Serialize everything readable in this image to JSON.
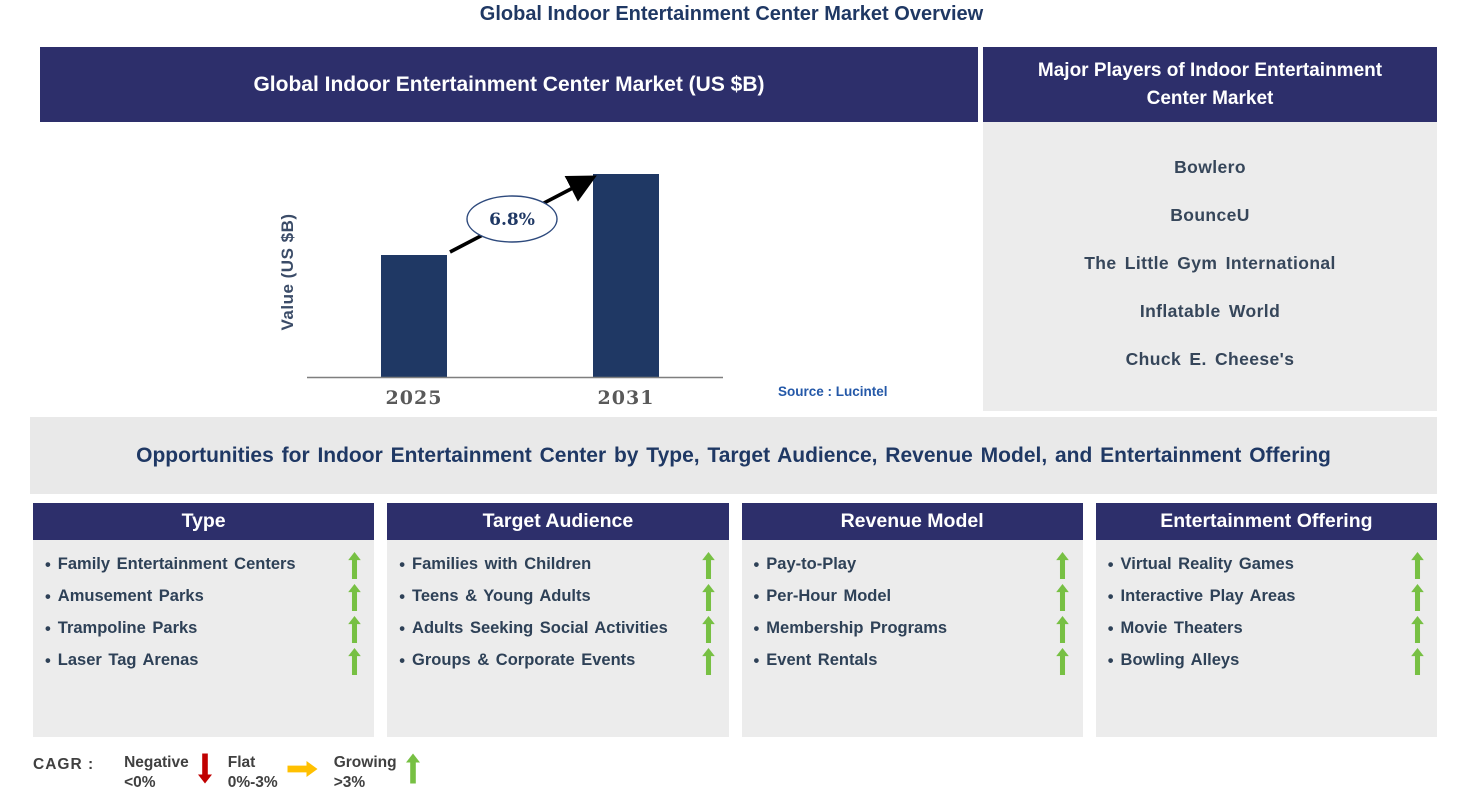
{
  "page": {
    "title": "Global Indoor Entertainment Center Market Overview"
  },
  "market_chart": {
    "header": "Global Indoor Entertainment Center Market (US $B)"
  },
  "chart_data": {
    "type": "bar",
    "title": "Global Indoor Entertainment Center Market (US $B)",
    "ylabel": "Value (US $B)",
    "xlabel": "",
    "categories": [
      "2025",
      "2031"
    ],
    "values": [
      0.6,
      1.0
    ],
    "values_note": "bars are unlabeled; values are relative heights read from pixels",
    "cagr_label": "6.8%",
    "source": "Source : Lucintel",
    "bar_color": "#1f3864",
    "grid": false,
    "legend_position": "none"
  },
  "major_players": {
    "header": "Major Players of Indoor Entertainment Center Market",
    "items": [
      "Bowlero",
      "BounceU",
      "The Little Gym International",
      "Inflatable World",
      "Chuck E. Cheese's"
    ]
  },
  "opportunities": {
    "heading": "Opportunities for Indoor Entertainment Center by Type, Target Audience, Revenue Model, and Entertainment Offering"
  },
  "columns": [
    {
      "header": "Type",
      "items": [
        {
          "label": "Family Entertainment Centers",
          "trend": "growing"
        },
        {
          "label": "Amusement Parks",
          "trend": "growing"
        },
        {
          "label": "Trampoline Parks",
          "trend": "growing"
        },
        {
          "label": "Laser Tag Arenas",
          "trend": "growing"
        }
      ]
    },
    {
      "header": "Target Audience",
      "items": [
        {
          "label": "Families with Children",
          "trend": "growing"
        },
        {
          "label": "Teens & Young Adults",
          "trend": "growing"
        },
        {
          "label": "Adults Seeking Social Activities",
          "trend": "growing"
        },
        {
          "label": "Groups & Corporate Events",
          "trend": "growing"
        }
      ]
    },
    {
      "header": "Revenue Model",
      "items": [
        {
          "label": "Pay-to-Play",
          "trend": "growing"
        },
        {
          "label": "Per-Hour Model",
          "trend": "growing"
        },
        {
          "label": "Membership Programs",
          "trend": "growing"
        },
        {
          "label": "Event Rentals",
          "trend": "growing"
        }
      ]
    },
    {
      "header": "Entertainment Offering",
      "items": [
        {
          "label": "Virtual Reality Games",
          "trend": "growing"
        },
        {
          "label": "Interactive Play Areas",
          "trend": "growing"
        },
        {
          "label": "Movie Theaters",
          "trend": "growing"
        },
        {
          "label": "Bowling Alleys",
          "trend": "growing"
        }
      ]
    }
  ],
  "legend": {
    "label": "CAGR :",
    "items": [
      {
        "name": "Negative",
        "range": "<0%",
        "direction": "down",
        "color": "#c00000"
      },
      {
        "name": "Flat",
        "range": "0%-3%",
        "direction": "right",
        "color": "#ffc000"
      },
      {
        "name": "Growing",
        "range": ">3%",
        "direction": "up",
        "color": "#77c043"
      }
    ]
  },
  "colors": {
    "navy_header": "#2d2f6b",
    "bar": "#1f3864",
    "panel_gray": "#ececec",
    "growing_green": "#77c043",
    "negative_red": "#c00000",
    "flat_yellow": "#ffc000",
    "title_text": "#1f3864"
  }
}
